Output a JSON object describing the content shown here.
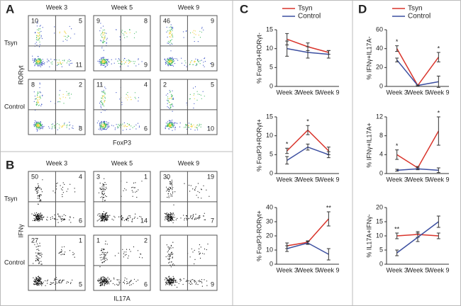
{
  "flow_panels": [
    {
      "label": "A",
      "columns": [
        "Week 3",
        "Week 5",
        "Week 9"
      ],
      "row_labels": [
        "Tsyn",
        "Control"
      ],
      "y_label": "RORγt",
      "x_label": "FoxP3",
      "quadrants": [
        [
          {
            "ul": 10,
            "ur": 5,
            "lr": 11
          },
          {
            "ul": 9,
            "ur": 8,
            "lr": 9
          },
          {
            "ul": 46,
            "ur": 9,
            "lr": 9
          }
        ],
        [
          {
            "ul": 8,
            "ur": 2,
            "lr": 8
          },
          {
            "ul": 11,
            "ur": 4,
            "lr": 6
          },
          {
            "ul": 2,
            "ur": 5,
            "lr": 10
          }
        ]
      ]
    },
    {
      "label": "B",
      "columns": [
        "Week 3",
        "Week 5",
        "Week 9"
      ],
      "row_labels": [
        "Tsyn",
        "Control"
      ],
      "y_label": "IFNγ",
      "x_label": "IL17A",
      "quadrants": [
        [
          {
            "ul": 50,
            "ur": 4,
            "lr": 6
          },
          {
            "ul": 3,
            "ur": 1,
            "lr": 14
          },
          {
            "ul": 30,
            "ur": 19,
            "lr": 7
          }
        ],
        [
          {
            "ul": 27,
            "ur": 1,
            "lr": 5
          },
          {
            "ul": 1,
            "ur": 2,
            "lr": 6
          },
          {
            "lr": 9
          }
        ]
      ]
    }
  ],
  "chart_panel_labels": [
    "C",
    "D"
  ],
  "chart_data": [
    {
      "type": "line",
      "y_label": "% FoxP3+RORγt-",
      "categories": [
        "Week 3",
        "Week 5",
        "Week 9"
      ],
      "ylim": [
        0,
        15
      ],
      "yticks": [
        0,
        5,
        10,
        15
      ],
      "legend": true,
      "series": [
        {
          "name": "Tsyn",
          "color": "#d9342b",
          "values": [
            12.5,
            10.5,
            9
          ],
          "errors": [
            1.5,
            1,
            0.5
          ]
        },
        {
          "name": "Control",
          "color": "#3c4fa0",
          "values": [
            10,
            9,
            8.5
          ],
          "errors": [
            2,
            1.5,
            1
          ]
        }
      ]
    },
    {
      "type": "line",
      "y_label": "% FoxP3+RORγt+",
      "categories": [
        "Week 3",
        "Week 5",
        "Week 9"
      ],
      "ylim": [
        0,
        15
      ],
      "yticks": [
        0,
        5,
        10,
        15
      ],
      "legend": false,
      "annotations": [
        "*",
        "*",
        null
      ],
      "series": [
        {
          "name": "Tsyn",
          "color": "#d9342b",
          "values": [
            6,
            11.5,
            6
          ],
          "errors": [
            0.7,
            1.2,
            1
          ]
        },
        {
          "name": "Control",
          "color": "#3c4fa0",
          "values": [
            3.5,
            7,
            5
          ],
          "errors": [
            1,
            0.8,
            0.8
          ]
        }
      ]
    },
    {
      "type": "line",
      "y_label": "% FoxP3-RORγt+",
      "categories": [
        "Week 3",
        "Week 5",
        "Week 9"
      ],
      "ylim": [
        0,
        40
      ],
      "yticks": [
        0,
        10,
        20,
        30,
        40
      ],
      "legend": false,
      "annotations": [
        null,
        null,
        "**"
      ],
      "series": [
        {
          "name": "Tsyn",
          "color": "#d9342b",
          "values": [
            13,
            15.5,
            32
          ],
          "errors": [
            2,
            1,
            5
          ]
        },
        {
          "name": "Control",
          "color": "#3c4fa0",
          "values": [
            11,
            15,
            7
          ],
          "errors": [
            2,
            1,
            4
          ]
        }
      ]
    },
    {
      "type": "line",
      "y_label": "% IFNγ+IL17A-",
      "categories": [
        "Week 3",
        "Week 5",
        "Week 9"
      ],
      "ylim": [
        0,
        60
      ],
      "yticks": [
        0,
        20,
        40,
        60
      ],
      "legend": true,
      "annotations": [
        "*",
        null,
        "*"
      ],
      "series": [
        {
          "name": "Tsyn",
          "color": "#d9342b",
          "values": [
            40,
            1,
            31
          ],
          "errors": [
            3,
            0.5,
            5
          ]
        },
        {
          "name": "Control",
          "color": "#3c4fa0",
          "values": [
            28,
            1,
            5
          ],
          "errors": [
            2,
            0.5,
            6
          ]
        }
      ]
    },
    {
      "type": "line",
      "y_label": "% IFNγ+IL17A+",
      "categories": [
        "Week 3",
        "Week 5",
        "Week 9"
      ],
      "ylim": [
        0,
        12
      ],
      "yticks": [
        0,
        4,
        8,
        12
      ],
      "legend": false,
      "annotations": [
        "*",
        null,
        "*"
      ],
      "series": [
        {
          "name": "Tsyn",
          "color": "#d9342b",
          "values": [
            4,
            1.2,
            9
          ],
          "errors": [
            1,
            0.3,
            3
          ]
        },
        {
          "name": "Control",
          "color": "#3c4fa0",
          "values": [
            0.7,
            1,
            0.7
          ],
          "errors": [
            0.2,
            0.2,
            0.5
          ]
        }
      ]
    },
    {
      "type": "line",
      "y_label": "% IL17A+IFNγ-",
      "categories": [
        "Week 3",
        "Week 5",
        "Week 9"
      ],
      "ylim": [
        0,
        20
      ],
      "yticks": [
        0,
        5,
        10,
        15,
        20
      ],
      "legend": false,
      "annotations": [
        "**",
        null,
        null
      ],
      "series": [
        {
          "name": "Tsyn",
          "color": "#d9342b",
          "values": [
            10,
            10.5,
            10
          ],
          "errors": [
            1,
            1,
            1
          ]
        },
        {
          "name": "Control",
          "color": "#3c4fa0",
          "values": [
            4,
            9.5,
            15
          ],
          "errors": [
            1,
            1.5,
            2
          ]
        }
      ]
    }
  ]
}
